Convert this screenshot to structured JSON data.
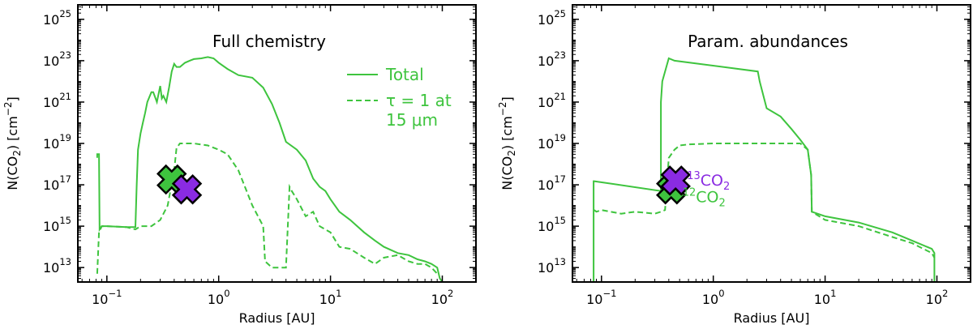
{
  "colors": {
    "green": "#3ec43e",
    "purple": "#8a2be2",
    "axis": "#000000"
  },
  "chart_data": [
    {
      "type": "line",
      "title": "Full chemistry",
      "xlabel": "Radius [AU]",
      "ylabel": "N(CO",
      "ylabel_sub": "2",
      "ylabel_unit": ") [cm",
      "ylabel_sup": "−2",
      "ylabel_end": "]",
      "xscale": "log",
      "yscale": "log",
      "xlim": [
        0.055,
        200
      ],
      "ylim": [
        2000000000000.0,
        5e+25
      ],
      "xticks": [
        {
          "v": 0.1,
          "base": "10",
          "exp": "−1"
        },
        {
          "v": 1,
          "base": "10",
          "exp": "0"
        },
        {
          "v": 10,
          "base": "10",
          "exp": "1"
        },
        {
          "v": 100,
          "base": "10",
          "exp": "2"
        }
      ],
      "yticks": [
        {
          "v": 10000000000000.0,
          "base": "10",
          "exp": "13"
        },
        {
          "v": 1000000000000000.0,
          "base": "10",
          "exp": "15"
        },
        {
          "v": 1e+17,
          "base": "10",
          "exp": "17"
        },
        {
          "v": 1e+19,
          "base": "10",
          "exp": "19"
        },
        {
          "v": 1e+21,
          "base": "10",
          "exp": "21"
        },
        {
          "v": 1e+23,
          "base": "10",
          "exp": "23"
        },
        {
          "v": 1e+25,
          "base": "10",
          "exp": "25"
        }
      ],
      "legend": {
        "position": "top-right",
        "entries": [
          {
            "label_lines": [
              "Total"
            ],
            "style": "solid"
          },
          {
            "label_lines": [
              "τ = 1 at",
              "15 μm"
            ],
            "style": "dashed"
          }
        ]
      },
      "series": [
        {
          "name": "Total",
          "style": "solid",
          "x": [
            0.082,
            0.082,
            0.085,
            0.086,
            0.086,
            0.09,
            0.1,
            0.15,
            0.18,
            0.185,
            0.19,
            0.2,
            0.21,
            0.22,
            0.23,
            0.25,
            0.26,
            0.28,
            0.3,
            0.31,
            0.32,
            0.34,
            0.36,
            0.38,
            0.4,
            0.42,
            0.45,
            0.5,
            0.55,
            0.6,
            0.7,
            0.8,
            0.9,
            1.0,
            1.2,
            1.5,
            2.0,
            2.5,
            3.0,
            3.5,
            4.0,
            5.0,
            6.0,
            7.0,
            8.0,
            9.0,
            10,
            12,
            15,
            20,
            25,
            30,
            40,
            50,
            60,
            70,
            80,
            90,
            95,
            100
          ],
          "y": [
            2e+18,
            3e+18,
            3e+18,
            1000000000000000.0,
            700000000000000.0,
            1000000000000000.0,
            1000000000000000.0,
            900000000000000.0,
            900000000000000.0,
            1e+17,
            5e+18,
            3e+19,
            1e+20,
            3e+20,
            1e+21,
            3e+21,
            3e+21,
            1e+21,
            6e+21,
            1.5e+21,
            2e+21,
            1e+21,
            5e+21,
            3e+22,
            7e+22,
            5e+22,
            5e+22,
            8e+22,
            1e+23,
            1.2e+23,
            1.3e+23,
            1.5e+23,
            1.3e+23,
            8e+22,
            4e+22,
            2e+22,
            1.5e+22,
            5e+21,
            8e+20,
            1e+20,
            1.2e+19,
            5e+18,
            1.5e+18,
            2e+17,
            8e+16,
            5e+16,
            2e+16,
            5000000000000000.0,
            2000000000000000.0,
            500000000000000.0,
            200000000000000.0,
            100000000000000.0,
            50000000000000.0,
            40000000000000.0,
            25000000000000.0,
            20000000000000.0,
            15000000000000.0,
            10000000000000.0,
            3000000000000.0,
            2000000000000.0
          ]
        },
        {
          "name": "τ = 1 at 15 μm",
          "style": "dashed",
          "x": [
            0.082,
            0.085,
            0.09,
            0.1,
            0.15,
            0.18,
            0.2,
            0.25,
            0.3,
            0.35,
            0.4,
            0.42,
            0.45,
            0.5,
            0.6,
            0.8,
            1.0,
            1.2,
            1.5,
            2.0,
            2.5,
            2.6,
            3.0,
            3.5,
            4.0,
            4.3,
            4.5,
            5.0,
            6.0,
            7.0,
            8.0,
            10,
            12,
            15,
            20,
            25,
            30,
            40,
            50,
            60,
            70,
            80,
            90
          ],
          "y": [
            5000000000000.0,
            500000000000000.0,
            1000000000000000.0,
            1000000000000000.0,
            900000000000000.0,
            700000000000000.0,
            1000000000000000.0,
            1000000000000000.0,
            2000000000000000.0,
            1e+16,
            5e+17,
            6e+18,
            1e+19,
            1e+19,
            1e+19,
            8e+18,
            5e+18,
            3e+18,
            5e+17,
            1e+16,
            1000000000000000.0,
            20000000000000.0,
            10000000000000.0,
            10000000000000.0,
            10000000000000.0,
            8e+16,
            5e+16,
            2e+16,
            3000000000000000.0,
            5000000000000000.0,
            1000000000000000.0,
            500000000000000.0,
            100000000000000.0,
            80000000000000.0,
            30000000000000.0,
            15000000000000.0,
            30000000000000.0,
            40000000000000.0,
            20000000000000.0,
            15000000000000.0,
            15000000000000.0,
            10000000000000.0,
            5000000000000.0
          ]
        }
      ],
      "markers": [
        {
          "name": "12CO2",
          "x": 0.38,
          "y": 1.8e+17,
          "color": "green"
        },
        {
          "name": "13CO2",
          "x": 0.52,
          "y": 6e+16,
          "color": "purple"
        }
      ]
    },
    {
      "type": "line",
      "title": "Param. abundances",
      "xlabel": "Radius [AU]",
      "ylabel": "N(CO",
      "ylabel_sub": "2",
      "ylabel_unit": ") [cm",
      "ylabel_sup": "−2",
      "ylabel_end": "]",
      "xscale": "log",
      "yscale": "log",
      "xlim": [
        0.055,
        200
      ],
      "ylim": [
        2000000000000.0,
        5e+25
      ],
      "xticks": [
        {
          "v": 0.1,
          "base": "10",
          "exp": "−1"
        },
        {
          "v": 1,
          "base": "10",
          "exp": "0"
        },
        {
          "v": 10,
          "base": "10",
          "exp": "1"
        },
        {
          "v": 100,
          "base": "10",
          "exp": "2"
        }
      ],
      "yticks": [
        {
          "v": 10000000000000.0,
          "base": "10",
          "exp": "13"
        },
        {
          "v": 1000000000000000.0,
          "base": "10",
          "exp": "15"
        },
        {
          "v": 1e+17,
          "base": "10",
          "exp": "17"
        },
        {
          "v": 1e+19,
          "base": "10",
          "exp": "19"
        },
        {
          "v": 1e+21,
          "base": "10",
          "exp": "21"
        },
        {
          "v": 1e+23,
          "base": "10",
          "exp": "23"
        },
        {
          "v": 1e+25,
          "base": "10",
          "exp": "25"
        }
      ],
      "series": [
        {
          "name": "",
          "style": "solid",
          "x": [
            0.085,
            0.085,
            0.086,
            0.34,
            0.34,
            0.35,
            0.4,
            0.45,
            2.5,
            2.6,
            3.0,
            4.0,
            5.0,
            6.0,
            7.0,
            7.5,
            7.6,
            10,
            20,
            40,
            60,
            90,
            95,
            95
          ],
          "y": [
            1000000000000.0,
            1.5e+17,
            1.5e+17,
            5e+16,
            1e+21,
            1e+22,
            1.3e+23,
            1e+23,
            3e+22,
            1e+22,
            5e+20,
            2e+20,
            5e+19,
            1.5e+19,
            5e+18,
            3e+17,
            5000000000000000.0,
            3000000000000000.0,
            1500000000000000.0,
            500000000000000.0,
            200000000000000.0,
            80000000000000.0,
            50000000000000.0,
            1000000000000.0
          ]
        },
        {
          "name": "",
          "style": "dashed",
          "x": [
            0.086,
            0.09,
            0.1,
            0.15,
            0.2,
            0.3,
            0.34,
            0.37,
            0.4,
            0.45,
            0.5,
            0.6,
            1.0,
            2.0,
            3.0,
            4.0,
            5.0,
            6.0,
            7.0,
            7.5,
            7.6,
            10,
            20,
            40,
            60,
            90,
            95
          ],
          "y": [
            6000000000000000.0,
            5000000000000000.0,
            6000000000000000.0,
            4000000000000000.0,
            5000000000000000.0,
            4000000000000000.0,
            5000000000000000.0,
            6000000000000000.0,
            2e+18,
            5e+18,
            8e+18,
            9e+18,
            1e+19,
            1e+19,
            1e+19,
            1e+19,
            1e+19,
            1e+19,
            5e+18,
            3e+17,
            5000000000000000.0,
            2000000000000000.0,
            1000000000000000.0,
            300000000000000.0,
            150000000000000.0,
            50000000000000.0,
            30000000000000.0
          ]
        }
      ],
      "markers": [
        {
          "name": "12CO2",
          "x": 0.42,
          "y": 6e+16,
          "color": "green"
        },
        {
          "name": "13CO2",
          "x": 0.46,
          "y": 1.6e+17,
          "color": "purple"
        }
      ],
      "annotations": [
        {
          "for": "13CO2",
          "sup": "13",
          "text": "CO",
          "sub": "2",
          "color": "purple"
        },
        {
          "for": "12CO2",
          "sup": "12",
          "text": "CO",
          "sub": "2",
          "color": "green"
        }
      ]
    }
  ]
}
